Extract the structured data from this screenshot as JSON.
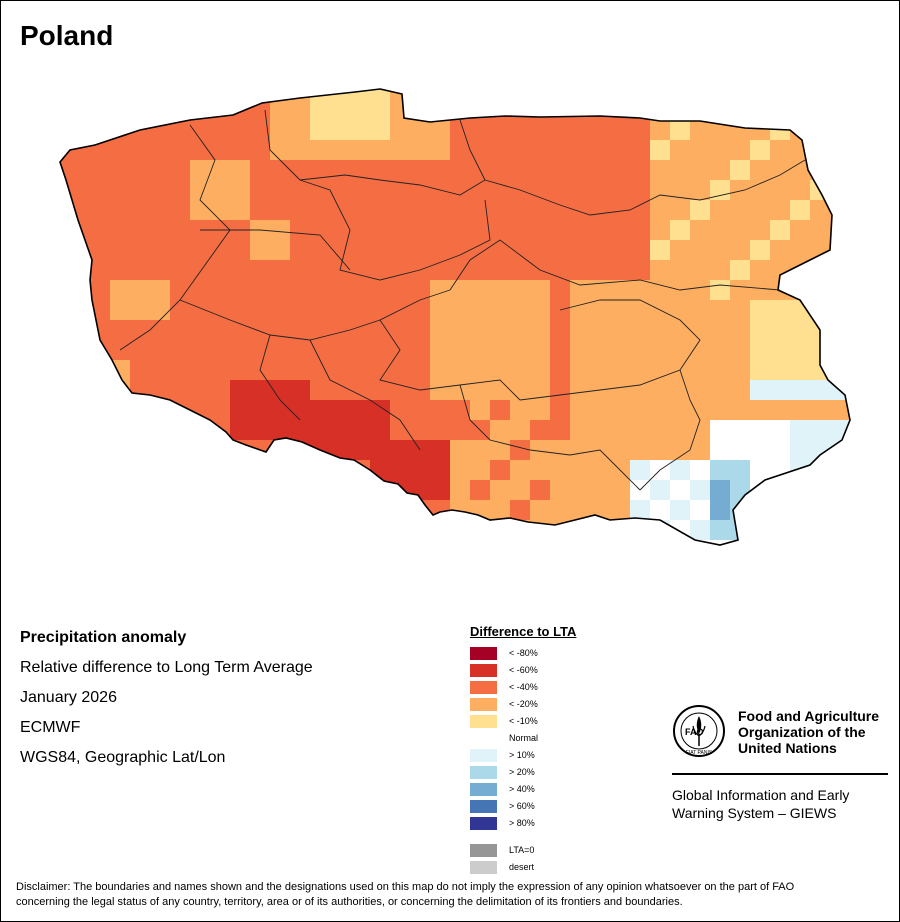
{
  "map": {
    "title": "Poland",
    "country": "Poland",
    "variable": "Precipitation anomaly",
    "description": "Relative difference to Long Term Average",
    "period": "January 2026",
    "source": "ECMWF",
    "projection": "WGS84, Geographic Lat/Lon"
  },
  "legend": {
    "title": "Difference to LTA",
    "items": [
      {
        "label": "< -80%",
        "color": "#a50026"
      },
      {
        "label": "< -60%",
        "color": "#d73027"
      },
      {
        "label": "< -40%",
        "color": "#f46d43"
      },
      {
        "label": "< -20%",
        "color": "#fdae61"
      },
      {
        "label": "< -10%",
        "color": "#fee090"
      },
      {
        "label": "Normal",
        "color": "#ffffff"
      },
      {
        "label": "> 10%",
        "color": "#e0f3f8"
      },
      {
        "label": "> 20%",
        "color": "#abd9e9"
      },
      {
        "label": "> 40%",
        "color": "#74add1"
      },
      {
        "label": "> 60%",
        "color": "#4575b4"
      },
      {
        "label": "> 80%",
        "color": "#313695"
      }
    ],
    "extra": [
      {
        "label": "LTA=0",
        "color": "#969696"
      },
      {
        "label": "desert",
        "color": "#cccccc"
      }
    ]
  },
  "organization": {
    "name_line1": "Food and Agriculture",
    "name_line2": "Organization of the",
    "name_line3": "United Nations",
    "logo_text": "FAO",
    "logo_motto": "FIAT PANIS",
    "system_line1": "Global Information and Early",
    "system_line2": "Warning System – GIEWS"
  },
  "disclaimer": {
    "line1": "Disclaimer: The boundaries and names shown and the designations used on this map do not imply the expression of any opinion whatsoever on the part of FAO",
    "line2": "concerning the legal status of any country, territory, area or of its authorities, or concerning the delimitation of its frontiers and boundaries."
  }
}
